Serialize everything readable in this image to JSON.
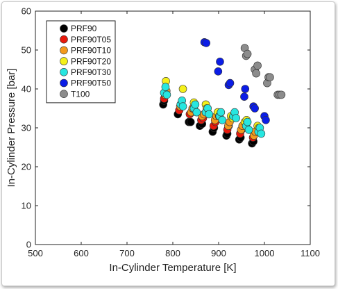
{
  "chart_data": {
    "type": "scatter",
    "title": "",
    "xlabel": "In-Cylinder Temperature [K]",
    "ylabel": "In-Cylinder Pressure [bar]",
    "xlim": [
      500,
      1100
    ],
    "ylim": [
      0,
      60
    ],
    "xticks": [
      "500",
      "600",
      "700",
      "800",
      "900",
      "1000",
      "1100"
    ],
    "yticks": [
      "0",
      "10",
      "20",
      "30",
      "40",
      "50",
      "60"
    ],
    "xtick_values": [
      500,
      600,
      700,
      800,
      900,
      1000,
      1100
    ],
    "ytick_values": [
      0,
      10,
      20,
      30,
      40,
      50,
      60
    ],
    "legend_position": "top-left",
    "grid": false,
    "series": [
      {
        "name": "PRF90",
        "color": "#000000",
        "points": [
          [
            779,
            36
          ],
          [
            781,
            37
          ],
          [
            811,
            33.5
          ],
          [
            814,
            34.5
          ],
          [
            835,
            31.5
          ],
          [
            839,
            31.5
          ],
          [
            859,
            30.5
          ],
          [
            864,
            31
          ],
          [
            887,
            29
          ],
          [
            890,
            30
          ],
          [
            917,
            28
          ],
          [
            919,
            28.5
          ],
          [
            945,
            27
          ],
          [
            948,
            27.5
          ],
          [
            973,
            26
          ],
          [
            976,
            26.5
          ]
        ]
      },
      {
        "name": "PRF90T05",
        "color": "#e8190c",
        "points": [
          [
            781,
            37.5
          ],
          [
            784,
            38.5
          ],
          [
            814,
            34.5
          ],
          [
            817,
            35.5
          ],
          [
            837,
            33.5
          ],
          [
            841,
            34
          ],
          [
            862,
            32
          ],
          [
            866,
            32.5
          ],
          [
            889,
            30.5
          ],
          [
            893,
            31.5
          ],
          [
            919,
            29.5
          ],
          [
            922,
            30.5
          ],
          [
            947,
            28.5
          ],
          [
            950,
            29.5
          ],
          [
            975,
            27.5
          ],
          [
            978,
            28.5
          ]
        ]
      },
      {
        "name": "PRF90T10",
        "color": "#f39a1d",
        "points": [
          [
            783,
            38.5
          ],
          [
            786,
            39.5
          ],
          [
            816,
            35.5
          ],
          [
            819,
            36
          ],
          [
            840,
            34
          ],
          [
            843,
            35
          ],
          [
            864,
            33
          ],
          [
            868,
            33.5
          ],
          [
            892,
            32
          ],
          [
            895,
            33
          ],
          [
            921,
            30.5
          ],
          [
            924,
            31.5
          ],
          [
            949,
            29.5
          ],
          [
            952,
            30.5
          ],
          [
            977,
            28
          ],
          [
            980,
            29
          ]
        ]
      },
      {
        "name": "PRF90T20",
        "color": "#f4f01a",
        "points": [
          [
            785,
            42
          ],
          [
            822,
            40
          ],
          [
            846,
            36.5
          ],
          [
            872,
            36
          ],
          [
            874,
            35
          ],
          [
            898,
            34
          ],
          [
            901,
            33
          ],
          [
            927,
            33
          ],
          [
            931,
            32.5
          ],
          [
            957,
            31.5
          ],
          [
            961,
            32
          ],
          [
            985,
            30.5
          ],
          [
            988,
            30
          ]
        ]
      },
      {
        "name": "PRF90T30",
        "color": "#27e6e0",
        "points": [
          [
            781,
            39
          ],
          [
            784,
            40.5
          ],
          [
            787,
            38.5
          ],
          [
            817,
            36
          ],
          [
            820,
            37
          ],
          [
            822,
            35.5
          ],
          [
            846,
            35
          ],
          [
            849,
            36
          ],
          [
            852,
            34
          ],
          [
            872,
            34
          ],
          [
            876,
            35
          ],
          [
            879,
            33.5
          ],
          [
            902,
            33
          ],
          [
            905,
            34
          ],
          [
            908,
            32
          ],
          [
            932,
            33
          ],
          [
            935,
            34
          ],
          [
            938,
            32.5
          ],
          [
            960,
            30.5
          ],
          [
            963,
            31.5
          ],
          [
            966,
            29.5
          ],
          [
            987,
            29
          ],
          [
            990,
            30
          ],
          [
            993,
            28.5
          ]
        ]
      },
      {
        "name": "PRF90T50",
        "color": "#0b1de6",
        "points": [
          [
            869,
            52
          ],
          [
            873,
            51.8
          ],
          [
            899,
            44.5
          ],
          [
            903,
            47
          ],
          [
            922,
            41
          ],
          [
            925,
            41.5
          ],
          [
            956,
            38
          ],
          [
            958,
            40
          ],
          [
            976,
            35.5
          ],
          [
            979,
            35
          ],
          [
            1000,
            33
          ],
          [
            1003,
            32
          ]
        ]
      },
      {
        "name": "T100",
        "color": "#8c8c8c",
        "points": [
          [
            957,
            50.5
          ],
          [
            960,
            48.5
          ],
          [
            963,
            49
          ],
          [
            979,
            45
          ],
          [
            982,
            44
          ],
          [
            985,
            46
          ],
          [
            1006,
            41.5
          ],
          [
            1009,
            43
          ],
          [
            1012,
            43
          ],
          [
            1029,
            38.5
          ],
          [
            1033,
            38.5
          ],
          [
            1037,
            38.5
          ]
        ]
      }
    ]
  }
}
